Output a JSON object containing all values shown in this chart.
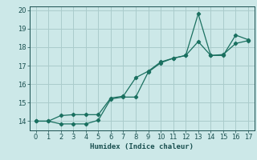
{
  "xlabel": "Humidex (Indice chaleur)",
  "ylabel": "",
  "xlim": [
    -0.5,
    17.5
  ],
  "ylim": [
    13.5,
    20.2
  ],
  "yticks": [
    14,
    15,
    16,
    17,
    18,
    19,
    20
  ],
  "xticks": [
    0,
    1,
    2,
    3,
    4,
    5,
    6,
    7,
    8,
    9,
    10,
    11,
    12,
    13,
    14,
    15,
    16,
    17
  ],
  "bg_color": "#cce8e8",
  "grid_color": "#aacccc",
  "line_color": "#1a7060",
  "line1_x": [
    0,
    1,
    2,
    3,
    4,
    5,
    6,
    7,
    8,
    9,
    10,
    11,
    12,
    13,
    14,
    15,
    16,
    17
  ],
  "line1_y": [
    14.0,
    14.0,
    14.3,
    14.35,
    14.35,
    14.35,
    15.25,
    15.35,
    16.35,
    16.7,
    17.2,
    17.4,
    17.55,
    18.3,
    17.55,
    17.6,
    18.2,
    18.35
  ],
  "line2_x": [
    0,
    1,
    2,
    3,
    4,
    5,
    6,
    7,
    8,
    9,
    10,
    11,
    12,
    13,
    14,
    15,
    16,
    17
  ],
  "line2_y": [
    14.0,
    14.0,
    13.85,
    13.85,
    13.85,
    14.05,
    15.2,
    15.3,
    15.3,
    16.65,
    17.15,
    17.4,
    17.55,
    19.8,
    17.55,
    17.55,
    18.65,
    18.4
  ]
}
